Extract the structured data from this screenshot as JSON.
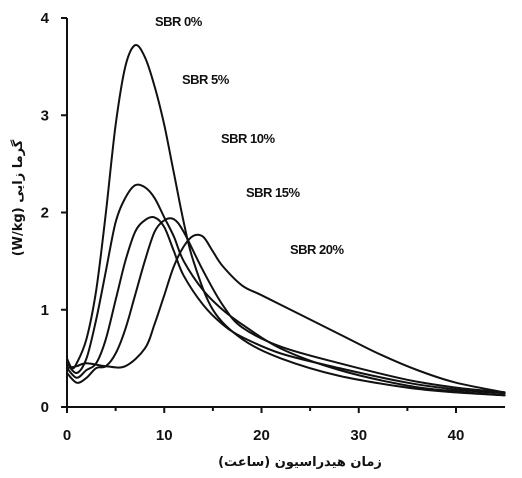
{
  "chart_data": {
    "type": "line",
    "xlabel": "زمان هیدراسیون (ساعت)",
    "ylabel": "گرما زایی (W/kg)",
    "xlim": [
      0,
      45
    ],
    "ylim": [
      0,
      4
    ],
    "x_ticks": [
      "0",
      "10",
      "20",
      "30",
      "40"
    ],
    "y_ticks": [
      "0",
      "1",
      "2",
      "3",
      "4"
    ],
    "grid": false,
    "series": [
      {
        "name": "SBR 0%",
        "x": [
          0,
          0.5,
          1,
          2,
          3,
          4,
          5,
          6,
          7,
          8,
          9,
          10,
          11,
          12,
          13,
          15,
          18,
          22,
          28,
          35,
          40,
          45
        ],
        "y": [
          0.5,
          0.4,
          0.45,
          0.7,
          1.2,
          2.0,
          2.9,
          3.5,
          3.72,
          3.6,
          3.3,
          2.9,
          2.4,
          1.9,
          1.5,
          1.0,
          0.7,
          0.5,
          0.32,
          0.2,
          0.15,
          0.12
        ]
      },
      {
        "name": "SBR 5%",
        "x": [
          0,
          1,
          2,
          3,
          4,
          5,
          6,
          7,
          8,
          9,
          10,
          11,
          12,
          14,
          16,
          18,
          22,
          28,
          35,
          40,
          45
        ],
        "y": [
          0.45,
          0.35,
          0.5,
          0.9,
          1.4,
          1.9,
          2.15,
          2.28,
          2.26,
          2.15,
          1.95,
          1.75,
          1.5,
          1.2,
          1.0,
          0.85,
          0.6,
          0.38,
          0.22,
          0.16,
          0.12
        ]
      },
      {
        "name": "SBR 10%",
        "x": [
          0,
          1,
          2,
          3,
          4,
          5,
          6,
          7,
          8,
          9,
          10,
          11,
          12,
          14,
          16,
          18,
          22,
          28,
          35,
          40,
          45
        ],
        "y": [
          0.4,
          0.3,
          0.38,
          0.45,
          0.7,
          1.1,
          1.5,
          1.8,
          1.92,
          1.95,
          1.85,
          1.6,
          1.35,
          1.05,
          0.85,
          0.72,
          0.55,
          0.4,
          0.25,
          0.18,
          0.14
        ]
      },
      {
        "name": "SBR 15%",
        "x": [
          0,
          1,
          2,
          3,
          4,
          5,
          6,
          7,
          8,
          9,
          10,
          11,
          12,
          14,
          16,
          18,
          22,
          28,
          35,
          40,
          45
        ],
        "y": [
          0.35,
          0.25,
          0.3,
          0.4,
          0.42,
          0.55,
          0.8,
          1.15,
          1.5,
          1.8,
          1.92,
          1.93,
          1.8,
          1.4,
          1.05,
          0.82,
          0.62,
          0.45,
          0.28,
          0.2,
          0.15
        ]
      },
      {
        "name": "SBR 20%",
        "x": [
          0,
          1,
          2,
          4,
          6,
          8,
          9,
          10,
          11,
          12,
          13,
          14,
          15,
          16,
          18,
          20,
          24,
          28,
          32,
          36,
          40,
          45
        ],
        "y": [
          0.4,
          0.42,
          0.45,
          0.42,
          0.42,
          0.6,
          0.85,
          1.15,
          1.45,
          1.65,
          1.76,
          1.75,
          1.6,
          1.45,
          1.25,
          1.15,
          0.95,
          0.75,
          0.55,
          0.38,
          0.25,
          0.15
        ]
      }
    ]
  }
}
